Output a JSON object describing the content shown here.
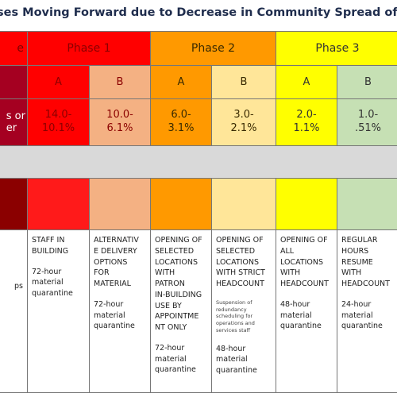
{
  "title": "ses Moving Forward due to Decrease in Community Spread of COVID",
  "first_column": {
    "header": "e",
    "range": "s or\ner",
    "description": "ps"
  },
  "phases": [
    {
      "name": "Phase 1",
      "stages": [
        {
          "label": "A",
          "range": "14.0-\n10.1%",
          "description": "STAFF IN\nBUILDING",
          "quarantine": "72-hour\nmaterial\nquarantine"
        },
        {
          "label": "B",
          "range": "10.0-\n6.1%",
          "description": "ALTERNATIV\nE DELIVERY\nOPTIONS\nFOR\nMATERIAL",
          "quarantine": "72-hour\nmaterial\nquarantine"
        }
      ]
    },
    {
      "name": "Phase 2",
      "stages": [
        {
          "label": "A",
          "range": "6.0-\n3.1%",
          "description": "OPENING OF\nSELECTED\nLOCATIONS\nWITH\nPATRON\nIN-BUILDING\nUSE BY\nAPPOINTME\nNT ONLY",
          "quarantine": "72-hour\nmaterial\nquarantine"
        },
        {
          "label": "B",
          "range": "3.0-\n2.1%",
          "description": "OPENING OF\nSELECTED\nLOCATIONS\nWITH STRICT\nHEADCOUNT",
          "note": "Suspension of\nredundancy\nscheduling for\noperations and\nservices staff",
          "quarantine": "48-hour\nmaterial\nquarantine"
        }
      ]
    },
    {
      "name": "Phase 3",
      "stages": [
        {
          "label": "A",
          "range": "2.0-\n1.1%",
          "description": "OPENING OF\nALL\nLOCATIONS\nWITH\nHEADCOUNT",
          "quarantine": "48-hour\nmaterial\nquarantine"
        },
        {
          "label": "B",
          "range": "1.0-\n.51%",
          "description": "REGULAR\nHOURS\nRESUME\nWITH\nHEADCOUNT",
          "quarantine": "24-hour\nmaterial\nquarantine"
        }
      ]
    }
  ]
}
